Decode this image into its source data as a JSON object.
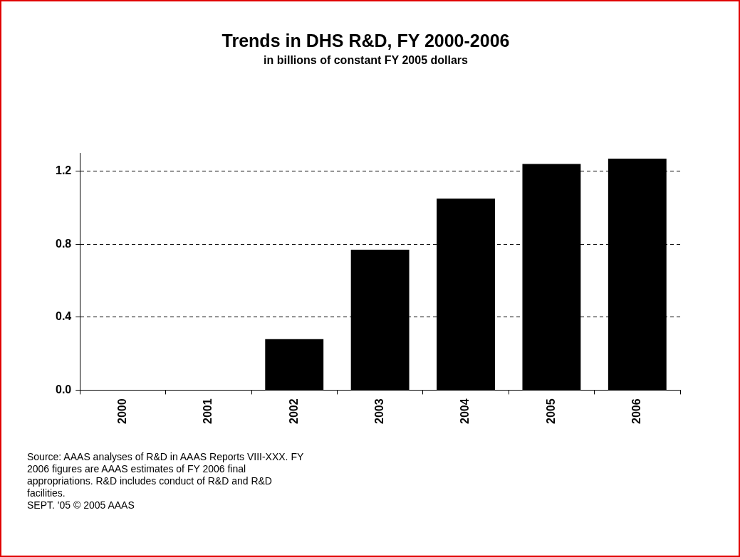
{
  "chart_data": {
    "type": "bar",
    "title": "Trends in DHS R&D, FY 2000-2006",
    "subtitle": "in billions of constant FY 2005 dollars",
    "categories": [
      "2000",
      "2001",
      "2002",
      "2003",
      "2004",
      "2005",
      "2006"
    ],
    "values": [
      0,
      0,
      0.28,
      0.77,
      1.05,
      1.24,
      1.27
    ],
    "color": "#000000",
    "ylim": [
      0,
      1.3
    ],
    "yticks": [
      {
        "value": 0,
        "label": "0.0"
      },
      {
        "value": 0.4,
        "label": "0.4"
      },
      {
        "value": 0.8,
        "label": "0.8"
      },
      {
        "value": 1.2,
        "label": "1.2"
      }
    ],
    "grid": "y",
    "annotations": [
      "Source: AAAS analyses of R&D in AAAS Reports VIII-XXX.  FY 2006 figures are AAAS estimates of FY 2006 final appropriations.  R&D includes conduct of R&D and R&D facilities.",
      "SEPT. '05 © 2005 AAAS"
    ]
  }
}
